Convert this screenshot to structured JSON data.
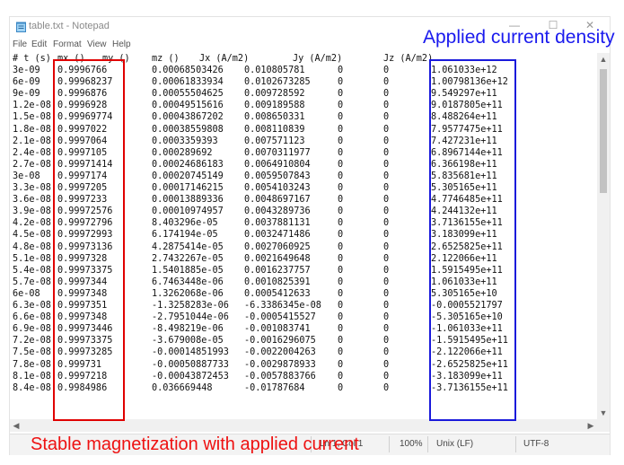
{
  "window": {
    "title": "table.txt - Notepad",
    "buttons": {
      "minimize": "—",
      "maximize": "☐",
      "close": "✕"
    }
  },
  "menu": [
    "File",
    "Edit",
    "Format",
    "View",
    "Help"
  ],
  "header": [
    "# t (s)",
    "mx ()",
    "my ()",
    "mz ()",
    "Jx (A/m2)",
    "Jy (A/m2)",
    "Jz (A/m2)"
  ],
  "rows": [
    [
      "3e-09",
      "0.9996766",
      "0.00068503426",
      "0.010805781",
      "0",
      "0",
      "1.061033e+12"
    ],
    [
      "6e-09",
      "0.99968237",
      "0.00061833934",
      "0.0102673285",
      "0",
      "0",
      "1.00798136e+12"
    ],
    [
      "9e-09",
      "0.9996876",
      "0.00055504625",
      "0.009728592",
      "0",
      "0",
      "9.549297e+11"
    ],
    [
      "1.2e-08",
      "0.9996928",
      "0.00049515616",
      "0.009189588",
      "0",
      "0",
      "9.0187805e+11"
    ],
    [
      "1.5e-08",
      "0.99969774",
      "0.00043867202",
      "0.008650331",
      "0",
      "0",
      "8.488264e+11"
    ],
    [
      "1.8e-08",
      "0.9997022",
      "0.00038559808",
      "0.008110839",
      "0",
      "0",
      "7.9577475e+11"
    ],
    [
      "2.1e-08",
      "0.9997064",
      "0.0003359393",
      "0.007571123",
      "0",
      "0",
      "7.427231e+11"
    ],
    [
      "2.4e-08",
      "0.9997105",
      "0.000289692",
      "0.0070311977",
      "0",
      "0",
      "6.8967144e+11"
    ],
    [
      "2.7e-08",
      "0.99971414",
      "0.00024686183",
      "0.0064910804",
      "0",
      "0",
      "6.366198e+11"
    ],
    [
      "3e-08",
      "0.9997174",
      "0.00020745149",
      "0.0059507843",
      "0",
      "0",
      "5.835681e+11"
    ],
    [
      "3.3e-08",
      "0.9997205",
      "0.00017146215",
      "0.0054103243",
      "0",
      "0",
      "5.305165e+11"
    ],
    [
      "3.6e-08",
      "0.9997233",
      "0.00013889336",
      "0.0048697167",
      "0",
      "0",
      "4.7746485e+11"
    ],
    [
      "3.9e-08",
      "0.99972576",
      "0.00010974957",
      "0.0043289736",
      "0",
      "0",
      "4.244132e+11"
    ],
    [
      "4.2e-08",
      "0.99972796",
      "8.403296e-05",
      "0.0037881131",
      "0",
      "0",
      "3.7136155e+11"
    ],
    [
      "4.5e-08",
      "0.99972993",
      "6.174194e-05",
      "0.0032471486",
      "0",
      "0",
      "3.183099e+11"
    ],
    [
      "4.8e-08",
      "0.99973136",
      "4.2875414e-05",
      "0.0027060925",
      "0",
      "0",
      "2.6525825e+11"
    ],
    [
      "5.1e-08",
      "0.9997328",
      "2.7432267e-05",
      "0.0021649648",
      "0",
      "0",
      "2.122066e+11"
    ],
    [
      "5.4e-08",
      "0.99973375",
      "1.5401885e-05",
      "0.0016237757",
      "0",
      "0",
      "1.5915495e+11"
    ],
    [
      "5.7e-08",
      "0.9997344",
      "6.7463448e-06",
      "0.0010825391",
      "0",
      "0",
      "1.061033e+11"
    ],
    [
      "6e-08",
      "0.9997348",
      "1.3262068e-06",
      "0.0005412633",
      "0",
      "0",
      "5.305165e+10"
    ],
    [
      "6.3e-08",
      "0.9997351",
      "-1.3258283e-06",
      "-6.3386345e-08",
      "0",
      "0",
      "-0.0005521797"
    ],
    [
      "6.6e-08",
      "0.9997348",
      "-2.7951044e-06",
      "-0.0005415527",
      "0",
      "0",
      "-5.305165e+10"
    ],
    [
      "6.9e-08",
      "0.99973446",
      "-8.498219e-06",
      "-0.001083741",
      "0",
      "0",
      "-1.061033e+11"
    ],
    [
      "7.2e-08",
      "0.99973375",
      "-3.679008e-05",
      "-0.0016296075",
      "0",
      "0",
      "-1.5915495e+11"
    ],
    [
      "7.5e-08",
      "0.99973285",
      "-0.00014851993",
      "-0.0022004263",
      "0",
      "0",
      "-2.122066e+11"
    ],
    [
      "7.8e-08",
      "0.999731",
      "-0.00050887733",
      "-0.0029878933",
      "0",
      "0",
      "-2.6525825e+11"
    ],
    [
      "8.1e-08",
      "0.9997218",
      "-0.00043872453",
      "-0.0057883766",
      "0",
      "0",
      "-3.183099e+11"
    ],
    [
      "8.4e-08",
      "0.9984986",
      "0.036669448",
      "-0.01787684",
      "0",
      "0",
      "-3.7136155e+11"
    ]
  ],
  "status": {
    "position": "Ln 1, Col 1",
    "zoom": "100%",
    "line_ending": "Unix (LF)",
    "encoding": "UTF-8"
  },
  "annotations": {
    "top_label": "Applied current density",
    "bottom_label": "Stable magnetization with applied current"
  },
  "colors": {
    "red_box": "#e00000",
    "blue_box": "#1a1adb",
    "red_text": "#ee1111",
    "blue_text": "#1a1aee"
  },
  "icons": {
    "app": "notepad-icon",
    "scroll_up": "chevron-up-icon",
    "scroll_down": "chevron-down-icon",
    "scroll_left": "chevron-left-icon",
    "scroll_right": "chevron-right-icon"
  }
}
